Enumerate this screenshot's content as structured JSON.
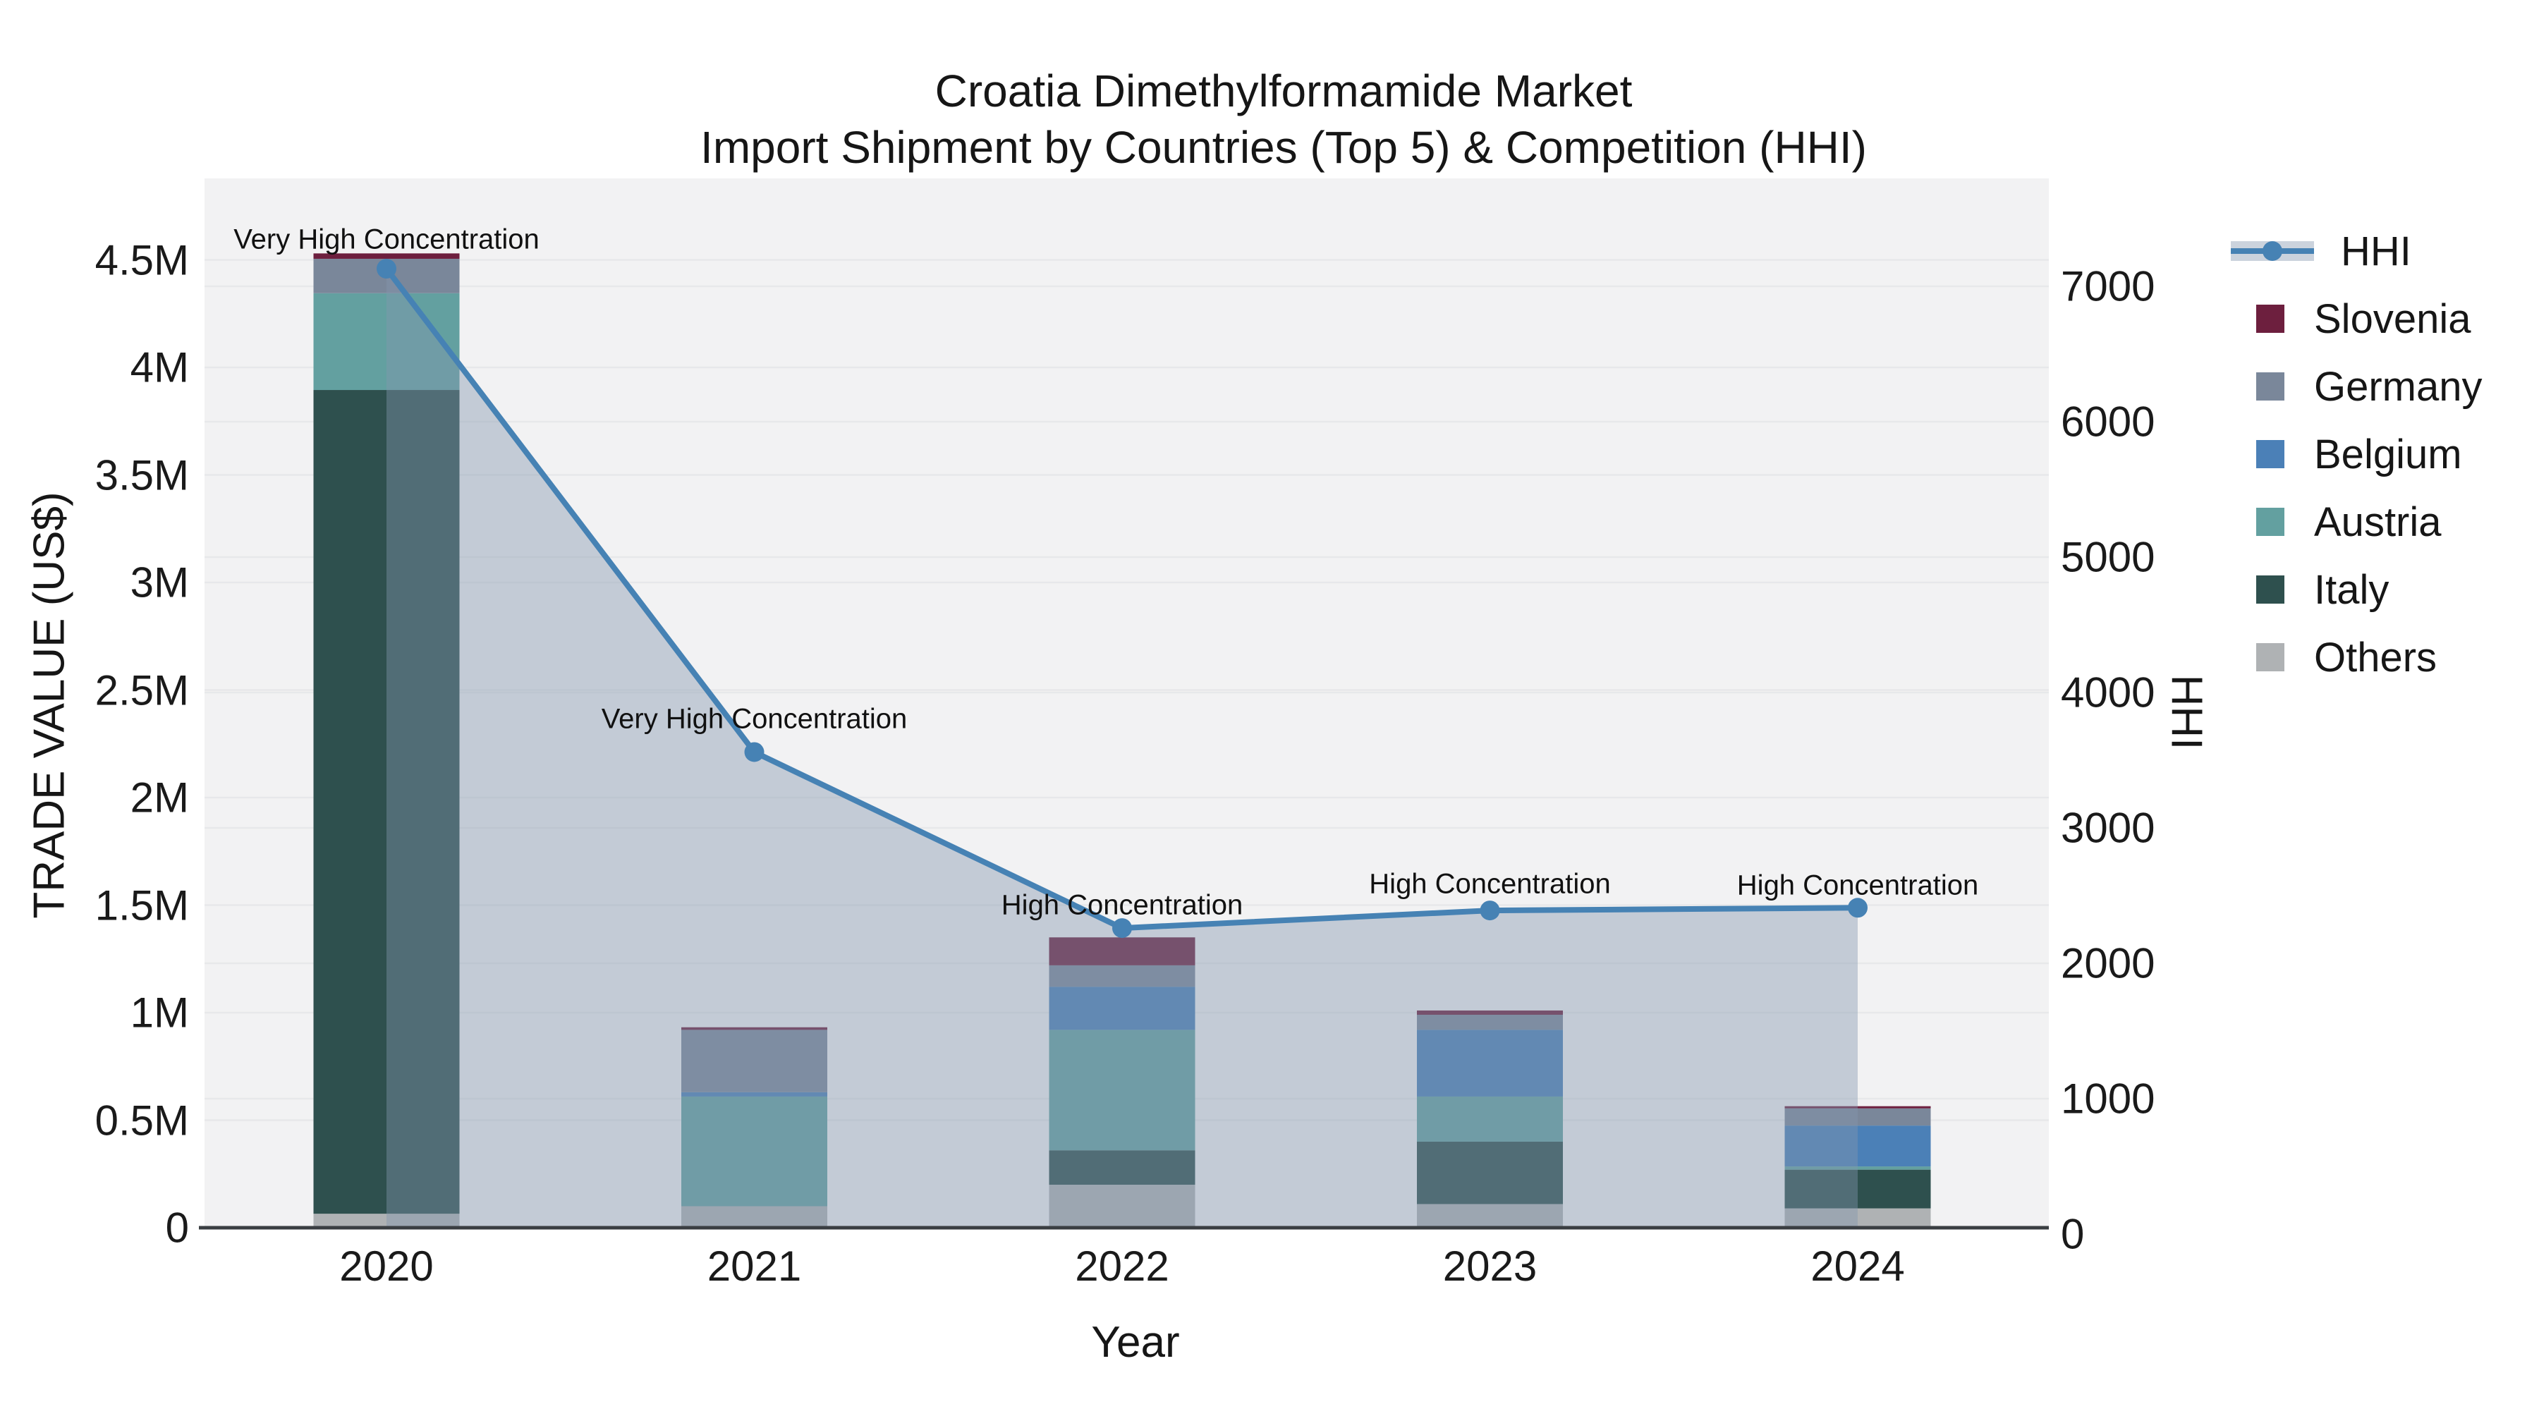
{
  "title": {
    "line1": "Croatia Dimethylformamide Market",
    "line2": "Import Shipment by Countries (Top 5) & Competition (HHI)"
  },
  "axes": {
    "y_left_label": "TRADE VALUE (US$)",
    "y_right_label": "HHI",
    "x_label": "Year",
    "y_left_ticks": [
      {
        "value": 0,
        "label": "0"
      },
      {
        "value": 500000,
        "label": "0.5M"
      },
      {
        "value": 1000000,
        "label": "1M"
      },
      {
        "value": 1500000,
        "label": "1.5M"
      },
      {
        "value": 2000000,
        "label": "2M"
      },
      {
        "value": 2500000,
        "label": "2.5M"
      },
      {
        "value": 3000000,
        "label": "3M"
      },
      {
        "value": 3500000,
        "label": "3.5M"
      },
      {
        "value": 4000000,
        "label": "4M"
      },
      {
        "value": 4500000,
        "label": "4.5M"
      }
    ],
    "y_right_ticks": [
      {
        "value": 0,
        "label": "0"
      },
      {
        "value": 1000,
        "label": "1000"
      },
      {
        "value": 2000,
        "label": "2000"
      },
      {
        "value": 3000,
        "label": "3000"
      },
      {
        "value": 4000,
        "label": "4000"
      },
      {
        "value": 5000,
        "label": "5000"
      },
      {
        "value": 6000,
        "label": "6000"
      },
      {
        "value": 7000,
        "label": "7000"
      }
    ]
  },
  "legend": {
    "hhi_label": "HHI",
    "items": [
      {
        "label": "Slovenia",
        "color": "#6d1f3e"
      },
      {
        "label": "Germany",
        "color": "#7a879a"
      },
      {
        "label": "Belgium",
        "color": "#4b80b7"
      },
      {
        "label": "Austria",
        "color": "#63a0a0"
      },
      {
        "label": "Italy",
        "color": "#2e504e"
      },
      {
        "label": "Others",
        "color": "#afb2b4"
      }
    ]
  },
  "chart_data": {
    "type": "bar",
    "subtype": "stacked-bars-with-line",
    "categories": [
      "2020",
      "2021",
      "2022",
      "2023",
      "2024"
    ],
    "series": [
      {
        "name": "Others",
        "color": "#afb2b4",
        "values": [
          65000,
          100000,
          200000,
          110000,
          90000
        ]
      },
      {
        "name": "Italy",
        "color": "#2e504e",
        "values": [
          3830000,
          0,
          160000,
          290000,
          180000
        ]
      },
      {
        "name": "Austria",
        "color": "#63a0a0",
        "values": [
          450000,
          510000,
          560000,
          210000,
          15000
        ]
      },
      {
        "name": "Belgium",
        "color": "#4b80b7",
        "values": [
          0,
          20000,
          200000,
          310000,
          190000
        ]
      },
      {
        "name": "Germany",
        "color": "#7a879a",
        "values": [
          160000,
          290000,
          100000,
          70000,
          80000
        ]
      },
      {
        "name": "Slovenia",
        "color": "#6d1f3e",
        "values": [
          25000,
          12000,
          130000,
          20000,
          10000
        ]
      }
    ],
    "line_series": {
      "name": "HHI",
      "color": "#4682b4",
      "area_fill": "#8296ae",
      "area_opacity": 0.42,
      "values": [
        7130,
        3560,
        2260,
        2390,
        2410
      ]
    },
    "annotations": [
      {
        "year": "2020",
        "text": "Very High Concentration"
      },
      {
        "year": "2021",
        "text": "Very High Concentration"
      },
      {
        "year": "2022",
        "text": "High Concentration"
      },
      {
        "year": "2023",
        "text": "High Concentration"
      },
      {
        "year": "2024",
        "text": "High Concentration"
      }
    ],
    "title": "Croatia Dimethylformamide Market",
    "subtitle": "Import Shipment by Countries (Top 5) & Competition (HHI)",
    "xlabel": "Year",
    "ylabel_left": "TRADE VALUE (US$)",
    "ylabel_right": "HHI",
    "ylim_left": [
      0,
      4870000
    ],
    "ylim_right": [
      0,
      7760
    ],
    "grid": true,
    "legend_position": "right"
  },
  "style": {
    "plot_bg": "#f2f2f3",
    "grid_color": "#e7e8ea",
    "axis_line_color": "#3a3e42",
    "text_color": "#161616"
  }
}
